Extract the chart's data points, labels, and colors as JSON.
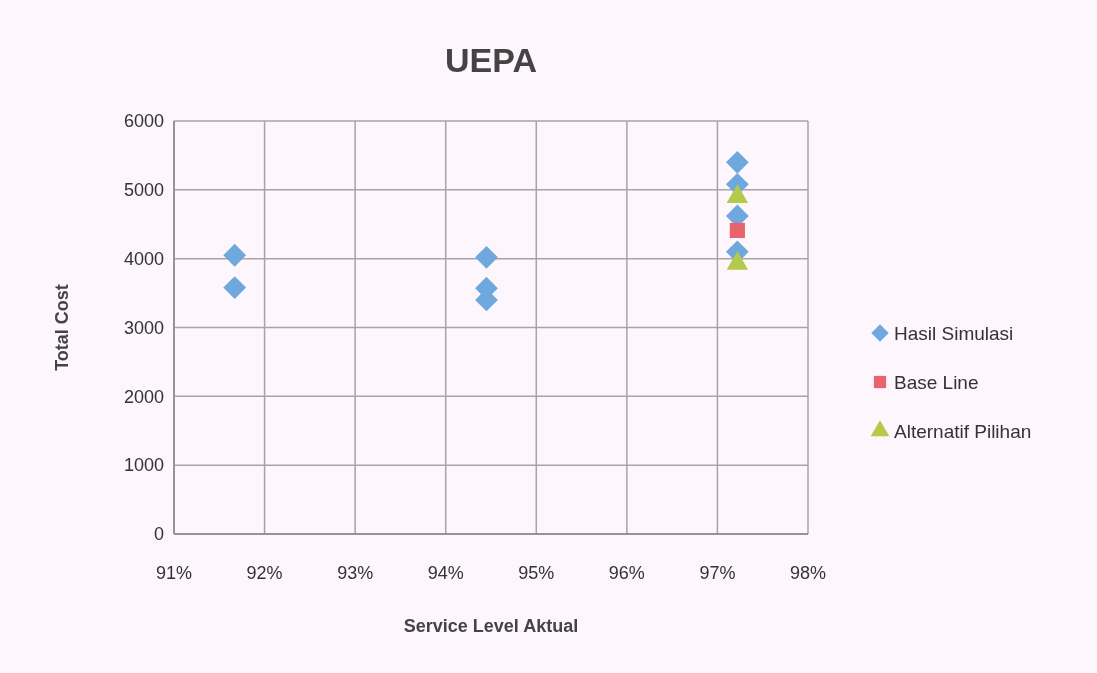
{
  "chart_data": {
    "type": "scatter",
    "title": "UEPA",
    "xlabel": "Service Level Aktual",
    "ylabel": "Total Cost",
    "xlim": [
      91,
      98
    ],
    "xticks": [
      {
        "value": 91,
        "label": "91%"
      },
      {
        "value": 92,
        "label": "92%"
      },
      {
        "value": 93,
        "label": "93%"
      },
      {
        "value": 94,
        "label": "94%"
      },
      {
        "value": 95,
        "label": "95%"
      },
      {
        "value": 96,
        "label": "96%"
      },
      {
        "value": 97,
        "label": "97%"
      },
      {
        "value": 98,
        "label": "98%"
      }
    ],
    "ylim": [
      0,
      6000
    ],
    "yticks": [
      0,
      1000,
      2000,
      3000,
      4000,
      5000,
      6000
    ],
    "grid": true,
    "legend": "right",
    "series": [
      {
        "name": "Hasil Simulasi",
        "color": "#6fa8dc",
        "marker": "diamond",
        "x": [
          91.67,
          91.67,
          94.45,
          94.45,
          94.45,
          97.22,
          97.22,
          97.22,
          97.22
        ],
        "values": [
          4050,
          3580,
          4020,
          3570,
          3400,
          5400,
          5080,
          4620,
          4100
        ]
      },
      {
        "name": "Base Line",
        "color": "#e8636b",
        "marker": "square",
        "x": [
          97.22
        ],
        "values": [
          4410
        ]
      },
      {
        "name": "Alternatif Pilihan",
        "color": "#b5c94a",
        "marker": "triangle",
        "x": [
          97.22,
          97.22
        ],
        "values": [
          4900,
          3930
        ]
      }
    ]
  }
}
